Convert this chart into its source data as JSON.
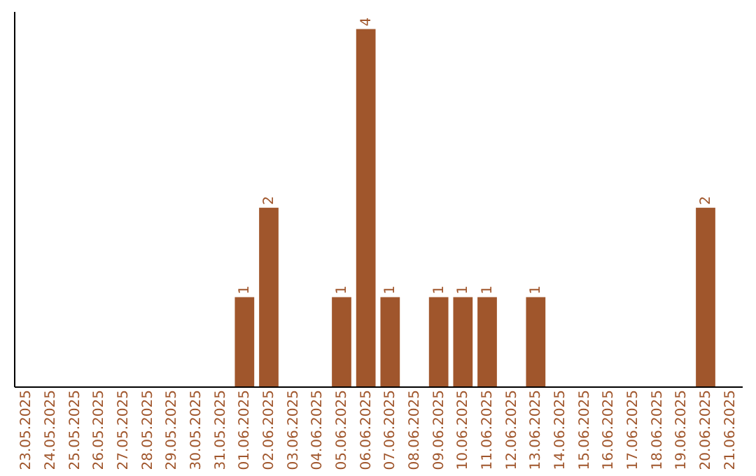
{
  "chart_data": {
    "type": "bar",
    "categories": [
      "23.05.2025",
      "24.05.2025",
      "25.05.2025",
      "26.05.2025",
      "27.05.2025",
      "28.05.2025",
      "29.05.2025",
      "30.05.2025",
      "31.05.2025",
      "01.06.2025",
      "02.06.2025",
      "03.06.2025",
      "04.06.2025",
      "05.06.2025",
      "06.06.2025",
      "07.06.2025",
      "08.06.2025",
      "09.06.2025",
      "10.06.2025",
      "11.06.2025",
      "12.06.2025",
      "13.06.2025",
      "14.06.2025",
      "15.06.2025",
      "16.06.2025",
      "17.06.2025",
      "18.06.2025",
      "19.06.2025",
      "20.06.2025",
      "21.06.2025"
    ],
    "values": [
      0,
      0,
      0,
      0,
      0,
      0,
      0,
      0,
      0,
      1,
      2,
      0,
      0,
      1,
      4,
      1,
      0,
      1,
      1,
      1,
      0,
      1,
      0,
      0,
      0,
      0,
      0,
      0,
      2,
      0
    ],
    "value_labels": [
      null,
      null,
      null,
      null,
      null,
      null,
      null,
      null,
      null,
      "1",
      "2",
      null,
      null,
      "1",
      "4",
      "1",
      null,
      "1",
      "1",
      "1",
      null,
      "1",
      null,
      null,
      null,
      null,
      null,
      null,
      "2",
      null
    ],
    "color": "#a0562c",
    "ylim": [
      0,
      4.2
    ],
    "grid": false,
    "tick_labels": "x"
  }
}
